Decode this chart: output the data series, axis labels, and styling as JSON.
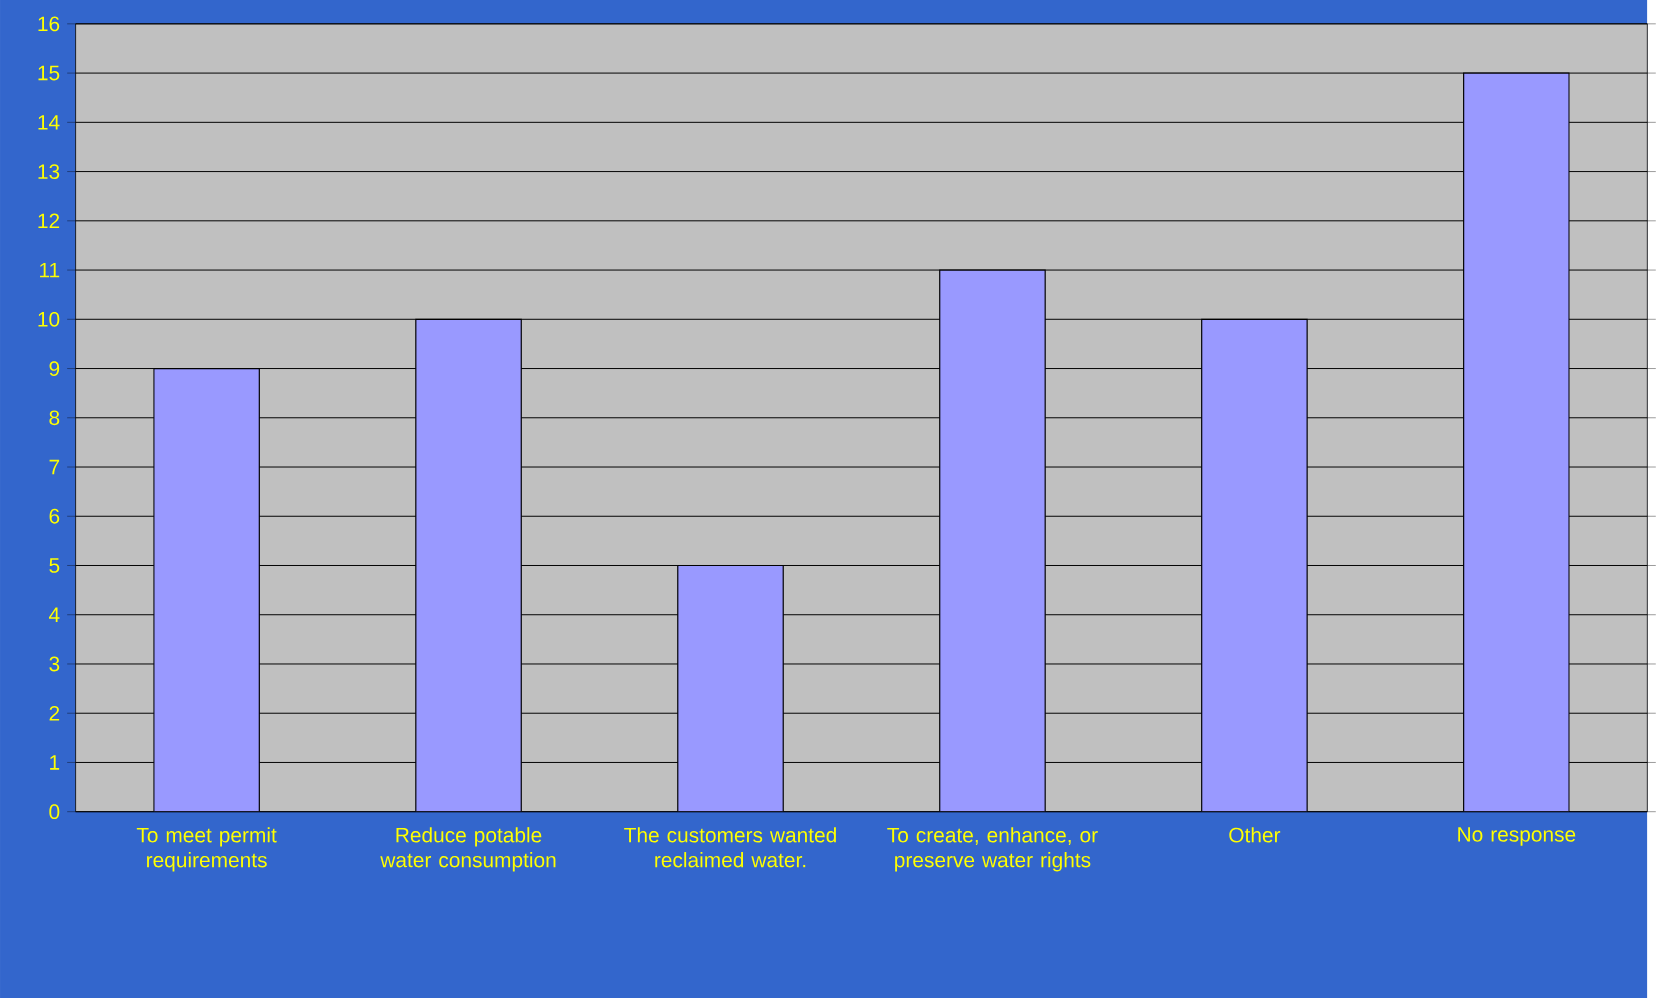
{
  "chart_data": {
    "type": "bar",
    "categories": [
      "To meet permit requirements",
      "Reduce potable water consumption",
      "The customers wanted reclaimed water.",
      "To create, enhance, or preserve water rights",
      "Other",
      "No response"
    ],
    "values": [
      9,
      10,
      5,
      11,
      10,
      15
    ],
    "color": "#9999ff",
    "ylim": [
      0,
      16
    ],
    "yticks": [
      0,
      1,
      2,
      3,
      4,
      5,
      6,
      7,
      8,
      9,
      10,
      11,
      12,
      13,
      14,
      15,
      16
    ],
    "grid": "y"
  }
}
